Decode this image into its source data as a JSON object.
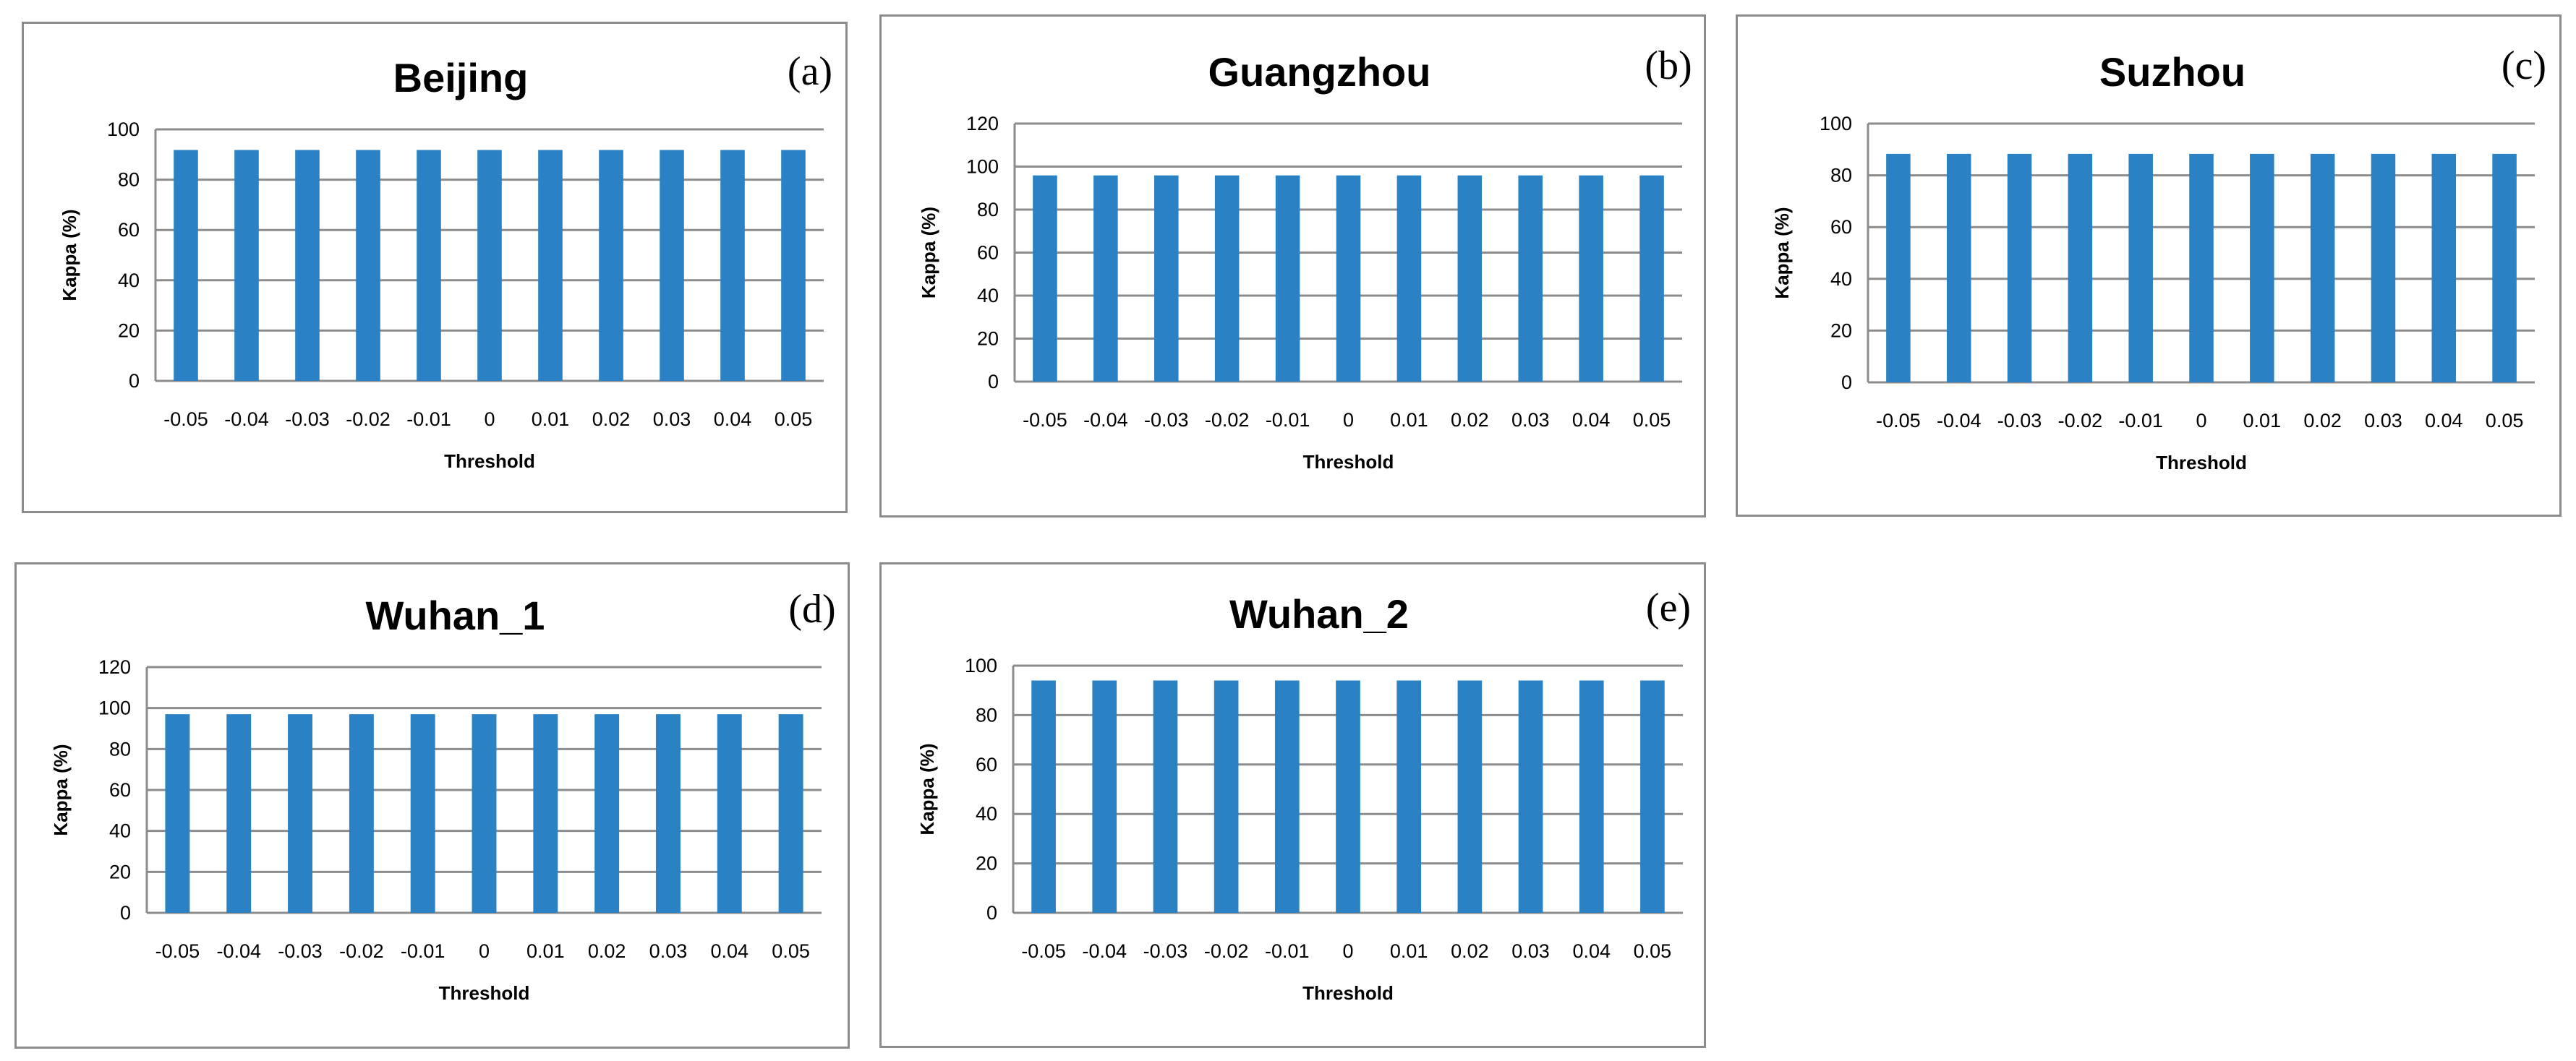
{
  "figure": {
    "colors": {
      "bar": "#2a82c4",
      "grid": "#8c8c8c",
      "axis": "#8c8c8c",
      "border": "#8c8c8c"
    }
  },
  "chart_data": [
    {
      "type": "bar",
      "letter": "(a)",
      "title": "Beijing",
      "xlabel": "Threshold",
      "ylabel": "Kappa (%)",
      "categories": [
        "-0.05",
        "-0.04",
        "-0.03",
        "-0.02",
        "-0.01",
        "0",
        "0.01",
        "0.02",
        "0.03",
        "0.04",
        "0.05"
      ],
      "values": [
        91.8,
        91.8,
        91.8,
        91.8,
        91.8,
        91.8,
        91.8,
        91.8,
        91.8,
        91.8,
        91.8
      ],
      "ylim": [
        0,
        100
      ],
      "yticks": [
        0,
        20,
        40,
        60,
        80,
        100
      ],
      "grid": true,
      "legend": "none"
    },
    {
      "type": "bar",
      "letter": "(b)",
      "title": "Guangzhou",
      "xlabel": "Threshold",
      "ylabel": "Kappa (%)",
      "categories": [
        "-0.05",
        "-0.04",
        "-0.03",
        "-0.02",
        "-0.01",
        "0",
        "0.01",
        "0.02",
        "0.03",
        "0.04",
        "0.05"
      ],
      "values": [
        95.9,
        95.9,
        95.9,
        95.9,
        95.9,
        95.9,
        95.9,
        95.9,
        95.9,
        95.9,
        95.9
      ],
      "ylim": [
        0,
        120
      ],
      "yticks": [
        0,
        20,
        40,
        60,
        80,
        100,
        120
      ],
      "grid": true,
      "legend": "none"
    },
    {
      "type": "bar",
      "letter": "(c)",
      "title": "Suzhou",
      "xlabel": "Threshold",
      "ylabel": "Kappa (%)",
      "categories": [
        "-0.05",
        "-0.04",
        "-0.03",
        "-0.02",
        "-0.01",
        "0",
        "0.01",
        "0.02",
        "0.03",
        "0.04",
        "0.05"
      ],
      "values": [
        88.3,
        88.3,
        88.3,
        88.3,
        88.3,
        88.3,
        88.3,
        88.3,
        88.3,
        88.3,
        88.3
      ],
      "ylim": [
        0,
        100
      ],
      "yticks": [
        0,
        20,
        40,
        60,
        80,
        100
      ],
      "grid": true,
      "legend": "none"
    },
    {
      "type": "bar",
      "letter": "(d)",
      "title": "Wuhan_1",
      "xlabel": "Threshold",
      "ylabel": "Kappa (%)",
      "categories": [
        "-0.05",
        "-0.04",
        "-0.03",
        "-0.02",
        "-0.01",
        "0",
        "0.01",
        "0.02",
        "0.03",
        "0.04",
        "0.05"
      ],
      "values": [
        97.0,
        97.0,
        97.0,
        97.0,
        97.0,
        97.0,
        97.0,
        97.0,
        97.0,
        97.0,
        97.0
      ],
      "ylim": [
        0,
        120
      ],
      "yticks": [
        0,
        20,
        40,
        60,
        80,
        100,
        120
      ],
      "grid": true,
      "legend": "none"
    },
    {
      "type": "bar",
      "letter": "(e)",
      "title": "Wuhan_2",
      "xlabel": "Threshold",
      "ylabel": "Kappa (%)",
      "categories": [
        "-0.05",
        "-0.04",
        "-0.03",
        "-0.02",
        "-0.01",
        "0",
        "0.01",
        "0.02",
        "0.03",
        "0.04",
        "0.05"
      ],
      "values": [
        94.0,
        94.0,
        94.0,
        94.0,
        94.0,
        94.0,
        94.0,
        94.0,
        94.0,
        94.0,
        94.0
      ],
      "ylim": [
        0,
        100
      ],
      "yticks": [
        0,
        20,
        40,
        60,
        80,
        100
      ],
      "grid": true,
      "legend": "none"
    }
  ]
}
